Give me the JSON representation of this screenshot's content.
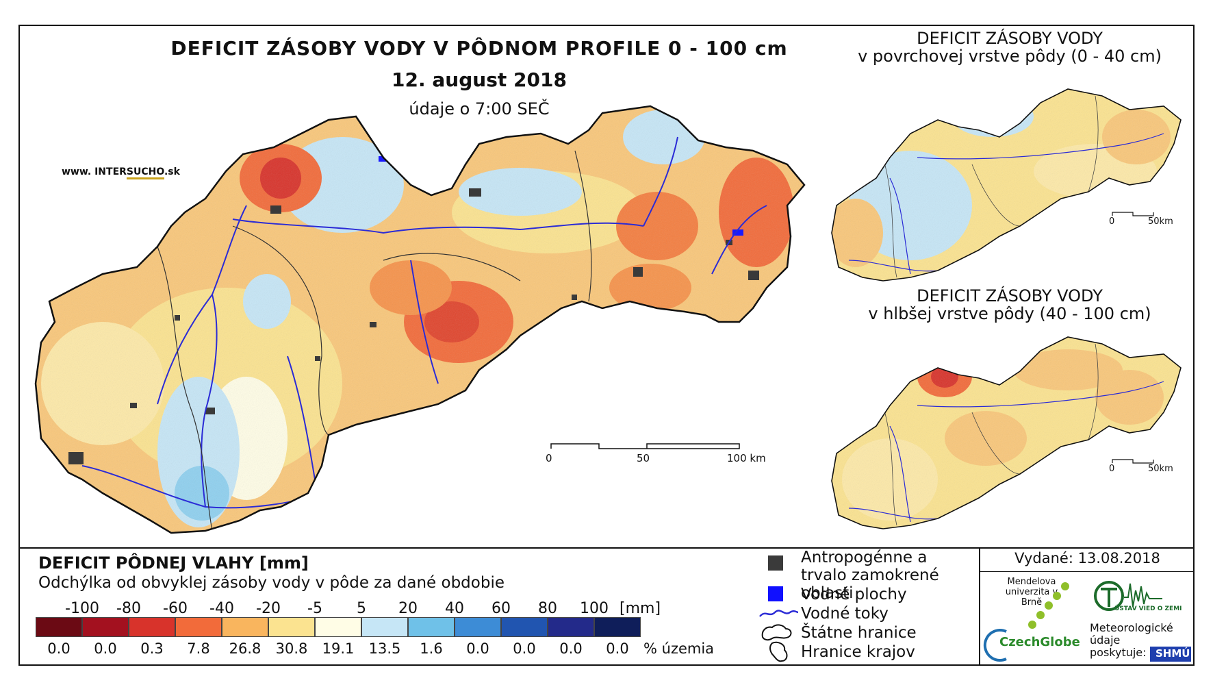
{
  "title": "DEFICIT ZÁSOBY VODY V PÔDNOM PROFILE 0 - 100 cm",
  "date": "12. august 2018",
  "time": "údaje o 7:00 SEČ",
  "brand": {
    "prefix": "www. INTER",
    "accent": "SUCHO",
    "suffix": ".sk"
  },
  "inset_top": {
    "title": "DEFICIT ZÁSOBY VODY",
    "subtitle": "v povrchovej vrstve pôdy (0 - 40 cm)",
    "scale": [
      "0",
      "50km"
    ]
  },
  "inset_bottom": {
    "title": "DEFICIT ZÁSOBY VODY",
    "subtitle": "v hlbšej vrstve pôdy (40 - 100 cm)",
    "scale": [
      "0",
      "50km"
    ]
  },
  "main_scale": [
    "0",
    "50",
    "100 km"
  ],
  "legend": {
    "title": "DEFICIT PÔDNEJ VLAHY [mm]",
    "subtitle": "Odchýlka od obvyklej zásoby vody v pôde za dané obdobie",
    "ticks": [
      "-100",
      "-80",
      "-60",
      "-40",
      "-20",
      "-5",
      "5",
      "20",
      "40",
      "60",
      "80",
      "100"
    ],
    "unit": "[mm]",
    "classes": [
      {
        "color": "#6b0a14",
        "percent": "0.0"
      },
      {
        "color": "#a3111f",
        "percent": "0.0"
      },
      {
        "color": "#d8332b",
        "percent": "0.3"
      },
      {
        "color": "#f26b3a",
        "percent": "7.8"
      },
      {
        "color": "#f9b55e",
        "percent": "26.8"
      },
      {
        "color": "#fbe390",
        "percent": "30.8"
      },
      {
        "color": "#fffde6",
        "percent": "19.1"
      },
      {
        "color": "#c6e6f6",
        "percent": "13.5"
      },
      {
        "color": "#6fc1e8",
        "percent": "1.6"
      },
      {
        "color": "#3d8cd6",
        "percent": "0.0"
      },
      {
        "color": "#2155b0",
        "percent": "0.0"
      },
      {
        "color": "#232a8a",
        "percent": "0.0"
      },
      {
        "color": "#0f1e5a",
        "percent": "0.0"
      }
    ],
    "percent_label": "% územia"
  },
  "key": {
    "urban": "Antropogénne a trvalo zamokrené oblasti",
    "water_bodies": "Vodné plochy",
    "rivers": "Vodné toky",
    "state_border": "Štátne hranice",
    "region_border": "Hranice krajov"
  },
  "issued": "Vydané: 13.08.2018",
  "institutions": {
    "mendel": "Mendelova univerzita v Brně",
    "czechglobe": "CzechGlobe",
    "uvz": "ÚSTAV VIED O ZEMI",
    "meteo": "Meteorologické údaje poskytuje:",
    "shmu": "SHMÚ"
  }
}
